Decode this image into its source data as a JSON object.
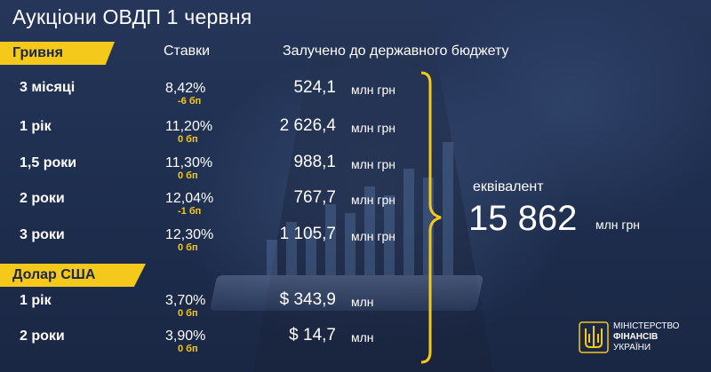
{
  "title": "Аукціони ОВДП 1 червня",
  "headers": {
    "uah_section": "Гривня",
    "rates": "Ставки",
    "raised": "Залучено до державного бюджету",
    "usd_section": "Долар США"
  },
  "uah_rows": [
    {
      "term": "3 місяці",
      "rate": "8,42%",
      "change": "-6 бп",
      "amount": "524,1",
      "unit": "млн грн"
    },
    {
      "term": "1 рік",
      "rate": "11,20%",
      "change": "0 бп",
      "amount": "2 626,4",
      "unit": "млн грн"
    },
    {
      "term": "1,5 роки",
      "rate": "11,30%",
      "change": "0 бп",
      "amount": "988,1",
      "unit": "млн грн"
    },
    {
      "term": "2 роки",
      "rate": "12,04%",
      "change": "-1 бп",
      "amount": "767,7",
      "unit": "млн грн"
    },
    {
      "term": "3 роки",
      "rate": "12,30%",
      "change": "0 бп",
      "amount": "1 105,7",
      "unit": "млн грн"
    }
  ],
  "usd_rows": [
    {
      "term": "1 рік",
      "rate": "3,70%",
      "change": "0 бп",
      "amount": "$ 343,9",
      "unit": "млн"
    },
    {
      "term": "2 роки",
      "rate": "3,90%",
      "change": "0 бп",
      "amount": "$ 14,7",
      "unit": "млн"
    }
  ],
  "equivalent": {
    "label": "еквівалент",
    "value": "15 862",
    "unit": "млн грн"
  },
  "logo": {
    "line1": "МІНІСТЕРСТВО",
    "line2": "ФІНАНСІВ",
    "line3": "УКРАЇНИ"
  },
  "colors": {
    "accent": "#f5c81c",
    "background": "#1c2a47"
  }
}
